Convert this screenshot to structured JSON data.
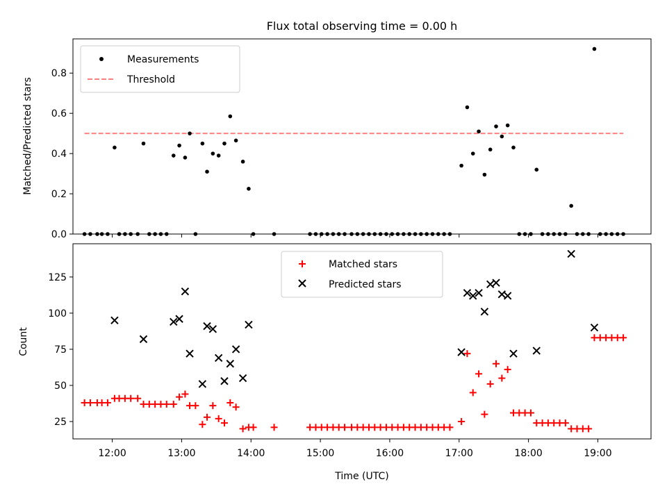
{
  "chart_data": [
    {
      "type": "scatter",
      "title": "Flux total observing time = 0.00 h",
      "xlabel": "",
      "ylabel": "Matched/Predicted stars",
      "xlim": [
        "11:26",
        "19:46"
      ],
      "ylim": [
        0,
        0.97
      ],
      "yticks": [
        0.0,
        0.2,
        0.4,
        0.6,
        0.8
      ],
      "ytick_labels": [
        "0.0",
        "0.2",
        "0.4",
        "0.6",
        "0.8"
      ],
      "legend": {
        "position": "top-left",
        "entries": [
          "Measurements",
          "Threshold"
        ]
      },
      "colors": {
        "measurements": "#000000",
        "threshold": "#ff8080"
      },
      "series": [
        {
          "name": "Measurements",
          "marker": "dot",
          "points": [
            [
              "11:36",
              0
            ],
            [
              "11:41",
              0
            ],
            [
              "11:47",
              0
            ],
            [
              "11:51",
              0
            ],
            [
              "11:56",
              0
            ],
            [
              "12:02",
              0.43
            ],
            [
              "12:06",
              0
            ],
            [
              "12:11",
              0
            ],
            [
              "12:16",
              0
            ],
            [
              "12:22",
              0
            ],
            [
              "12:27",
              0.45
            ],
            [
              "12:32",
              0
            ],
            [
              "12:37",
              0
            ],
            [
              "12:42",
              0
            ],
            [
              "12:47",
              0
            ],
            [
              "12:53",
              0.39
            ],
            [
              "12:58",
              0.44
            ],
            [
              "13:03",
              0.38
            ],
            [
              "13:07",
              0.5
            ],
            [
              "13:12",
              0
            ],
            [
              "13:18",
              0.45
            ],
            [
              "13:22",
              0.31
            ],
            [
              "13:27",
              0.4
            ],
            [
              "13:32",
              0.39
            ],
            [
              "13:37",
              0.45
            ],
            [
              "13:42",
              0.585
            ],
            [
              "13:47",
              0.465
            ],
            [
              "13:53",
              0.36
            ],
            [
              "13:58",
              0.225
            ],
            [
              "14:02",
              0
            ],
            [
              "14:20",
              0
            ],
            [
              "14:51",
              0
            ],
            [
              "14:56",
              0
            ],
            [
              "15:01",
              0
            ],
            [
              "15:06",
              0
            ],
            [
              "15:11",
              0
            ],
            [
              "15:16",
              0
            ],
            [
              "15:21",
              0
            ],
            [
              "15:27",
              0
            ],
            [
              "15:32",
              0
            ],
            [
              "15:37",
              0
            ],
            [
              "15:42",
              0
            ],
            [
              "15:47",
              0
            ],
            [
              "15:52",
              0
            ],
            [
              "15:57",
              0
            ],
            [
              "16:02",
              0
            ],
            [
              "16:07",
              0
            ],
            [
              "16:12",
              0
            ],
            [
              "16:17",
              0
            ],
            [
              "16:22",
              0
            ],
            [
              "16:27",
              0
            ],
            [
              "16:32",
              0
            ],
            [
              "16:37",
              0
            ],
            [
              "16:42",
              0
            ],
            [
              "16:47",
              0
            ],
            [
              "16:52",
              0
            ],
            [
              "17:02",
              0.34
            ],
            [
              "17:07",
              0.63
            ],
            [
              "17:12",
              0.4
            ],
            [
              "17:17",
              0.51
            ],
            [
              "17:22",
              0.295
            ],
            [
              "17:27",
              0.42
            ],
            [
              "17:32",
              0.535
            ],
            [
              "17:37",
              0.485
            ],
            [
              "17:42",
              0.54
            ],
            [
              "17:47",
              0.43
            ],
            [
              "17:52",
              0
            ],
            [
              "17:57",
              0
            ],
            [
              "18:02",
              0
            ],
            [
              "18:07",
              0.32
            ],
            [
              "18:12",
              0
            ],
            [
              "18:17",
              0
            ],
            [
              "18:22",
              0
            ],
            [
              "18:27",
              0
            ],
            [
              "18:32",
              0
            ],
            [
              "18:37",
              0.14
            ],
            [
              "18:42",
              0
            ],
            [
              "18:47",
              0
            ],
            [
              "18:52",
              0
            ],
            [
              "18:57",
              0.92
            ],
            [
              "19:02",
              0
            ],
            [
              "19:07",
              0
            ],
            [
              "19:12",
              0
            ],
            [
              "19:17",
              0
            ],
            [
              "19:22",
              0
            ]
          ]
        },
        {
          "name": "Threshold",
          "style": "dashed",
          "x": [
            "11:36",
            "19:22"
          ],
          "y": [
            0.5,
            0.5
          ]
        }
      ]
    },
    {
      "type": "scatter",
      "title": "",
      "xlabel": "Time (UTC)",
      "ylabel": "Count",
      "xlim": [
        "11:26",
        "19:46"
      ],
      "ylim": [
        13,
        148
      ],
      "xticks": [
        "12:00",
        "13:00",
        "14:00",
        "15:00",
        "16:00",
        "17:00",
        "18:00",
        "19:00"
      ],
      "yticks": [
        25,
        50,
        75,
        100,
        125
      ],
      "ytick_labels": [
        "25",
        "50",
        "75",
        "100",
        "125"
      ],
      "legend": {
        "position": "top-center",
        "entries": [
          "Matched stars",
          "Predicted stars"
        ]
      },
      "colors": {
        "matched": "#ff0000",
        "predicted": "#000000"
      },
      "series": [
        {
          "name": "Matched stars",
          "marker": "plus",
          "points": [
            [
              "11:36",
              38
            ],
            [
              "11:41",
              38
            ],
            [
              "11:47",
              38
            ],
            [
              "11:51",
              38
            ],
            [
              "11:56",
              38
            ],
            [
              "12:02",
              41
            ],
            [
              "12:06",
              41
            ],
            [
              "12:11",
              41
            ],
            [
              "12:16",
              41
            ],
            [
              "12:22",
              41
            ],
            [
              "12:27",
              37
            ],
            [
              "12:32",
              37
            ],
            [
              "12:37",
              37
            ],
            [
              "12:42",
              37
            ],
            [
              "12:47",
              37
            ],
            [
              "12:53",
              37
            ],
            [
              "12:58",
              42
            ],
            [
              "13:03",
              44
            ],
            [
              "13:07",
              36
            ],
            [
              "13:12",
              36
            ],
            [
              "13:18",
              23
            ],
            [
              "13:22",
              28
            ],
            [
              "13:27",
              36
            ],
            [
              "13:32",
              27
            ],
            [
              "13:37",
              24
            ],
            [
              "13:42",
              38
            ],
            [
              "13:47",
              35
            ],
            [
              "13:53",
              20
            ],
            [
              "13:58",
              21
            ],
            [
              "14:02",
              21
            ],
            [
              "14:20",
              21
            ],
            [
              "14:51",
              21
            ],
            [
              "14:56",
              21
            ],
            [
              "15:01",
              21
            ],
            [
              "15:06",
              21
            ],
            [
              "15:11",
              21
            ],
            [
              "15:16",
              21
            ],
            [
              "15:21",
              21
            ],
            [
              "15:27",
              21
            ],
            [
              "15:32",
              21
            ],
            [
              "15:37",
              21
            ],
            [
              "15:42",
              21
            ],
            [
              "15:47",
              21
            ],
            [
              "15:52",
              21
            ],
            [
              "15:57",
              21
            ],
            [
              "16:02",
              21
            ],
            [
              "16:07",
              21
            ],
            [
              "16:12",
              21
            ],
            [
              "16:17",
              21
            ],
            [
              "16:22",
              21
            ],
            [
              "16:27",
              21
            ],
            [
              "16:32",
              21
            ],
            [
              "16:37",
              21
            ],
            [
              "16:42",
              21
            ],
            [
              "16:47",
              21
            ],
            [
              "16:52",
              21
            ],
            [
              "17:02",
              25
            ],
            [
              "17:07",
              72
            ],
            [
              "17:12",
              45
            ],
            [
              "17:17",
              58
            ],
            [
              "17:22",
              30
            ],
            [
              "17:27",
              51
            ],
            [
              "17:32",
              65
            ],
            [
              "17:37",
              55
            ],
            [
              "17:42",
              61
            ],
            [
              "17:47",
              31
            ],
            [
              "17:52",
              31
            ],
            [
              "17:57",
              31
            ],
            [
              "18:02",
              31
            ],
            [
              "18:07",
              24
            ],
            [
              "18:12",
              24
            ],
            [
              "18:17",
              24
            ],
            [
              "18:22",
              24
            ],
            [
              "18:27",
              24
            ],
            [
              "18:32",
              24
            ],
            [
              "18:37",
              20
            ],
            [
              "18:42",
              20
            ],
            [
              "18:47",
              20
            ],
            [
              "18:52",
              20
            ],
            [
              "18:57",
              83
            ],
            [
              "19:02",
              83
            ],
            [
              "19:07",
              83
            ],
            [
              "19:12",
              83
            ],
            [
              "19:17",
              83
            ],
            [
              "19:22",
              83
            ]
          ]
        },
        {
          "name": "Predicted stars",
          "marker": "x",
          "points": [
            [
              "12:02",
              95
            ],
            [
              "12:27",
              82
            ],
            [
              "12:53",
              94
            ],
            [
              "12:58",
              96
            ],
            [
              "13:03",
              115
            ],
            [
              "13:07",
              72
            ],
            [
              "13:18",
              51
            ],
            [
              "13:22",
              91
            ],
            [
              "13:27",
              89
            ],
            [
              "13:32",
              69
            ],
            [
              "13:37",
              53
            ],
            [
              "13:42",
              65
            ],
            [
              "13:47",
              75
            ],
            [
              "13:53",
              55
            ],
            [
              "13:58",
              92
            ],
            [
              "17:02",
              73
            ],
            [
              "17:07",
              114
            ],
            [
              "17:12",
              112
            ],
            [
              "17:17",
              114
            ],
            [
              "17:22",
              101
            ],
            [
              "17:27",
              120
            ],
            [
              "17:32",
              121
            ],
            [
              "17:37",
              113
            ],
            [
              "17:42",
              112
            ],
            [
              "17:47",
              72
            ],
            [
              "18:07",
              74
            ],
            [
              "18:37",
              141
            ],
            [
              "18:57",
              90
            ]
          ]
        }
      ]
    }
  ]
}
